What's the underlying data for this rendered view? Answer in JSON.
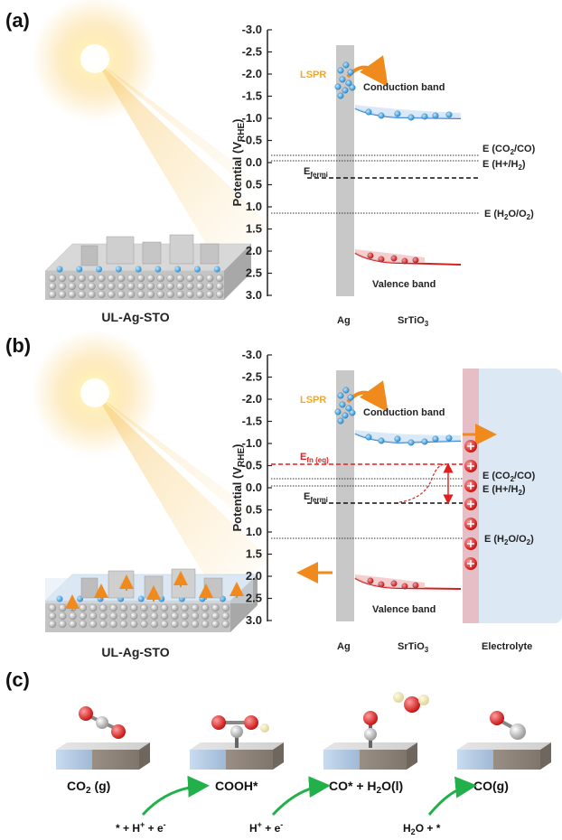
{
  "panels": {
    "a": {
      "label": "(a)",
      "sample_name": "UL-Ag-STO",
      "ylabel_main": "Potential (V",
      "ylabel_sub": "RHE",
      "ylabel_close": ")",
      "ticks": [
        "-3.0",
        "-2.5",
        "-2.0",
        "-1.5",
        "-1.0",
        "-0.5",
        "0.0",
        "0.5",
        "1.0",
        "1.5",
        "2.0",
        "2.5",
        "3.0"
      ],
      "lspr": "LSPR",
      "conduction": "Conduction band",
      "valence": "Valence band",
      "efermi_main": "E",
      "efermi_sub": "fermi",
      "co2co": "E (CO",
      "co2co_sub": "2",
      "co2co_tail": "/CO)",
      "hh2": "E (H+/H",
      "hh2_sub": "2",
      "hh2_tail": ")",
      "h2oo2": "E (H",
      "h2oo2_sub1": "2",
      "h2oo2_mid": "O/O",
      "h2oo2_sub2": "2",
      "h2oo2_tail": ")",
      "ag": "Ag",
      "srtio": "SrTiO",
      "srtio_sub": "3"
    },
    "b": {
      "label": "(b)",
      "sample_name": "UL-Ag-STO",
      "lspr": "LSPR",
      "conduction": "Conduction band",
      "valence": "Valence band",
      "efn_main": "E",
      "efn_sub": "fn (eq)",
      "electrolyte": "Electrolyte"
    },
    "c": {
      "label": "(c)",
      "step1": "CO",
      "step1_sub": "2",
      "step1_tail": " (g)",
      "step2": "COOH*",
      "step3": "CO* + H",
      "step3_sub": "2",
      "step3_tail": "O(l)",
      "step4": "CO(g)",
      "r1": "* + H",
      "r1_sup1": "+",
      "r1_mid": " + e",
      "r1_sup2": "-",
      "r2": "H",
      "r2_sup1": "+",
      "r2_mid": " + e",
      "r2_sup2": "-",
      "r3": "H",
      "r3_sub": "2",
      "r3_tail": "O + *"
    }
  },
  "colors": {
    "conduction": "#3a86d8",
    "valence": "#d42020",
    "efn": "#e02020",
    "lspr": "#f5a623",
    "arrow_orange": "#f08a1c",
    "arrow_green": "#22b04a",
    "ag_bar": "#c8c8c8",
    "electrolyte": "#dde8f5",
    "electrolyte_edge": "#e3a6ae"
  }
}
